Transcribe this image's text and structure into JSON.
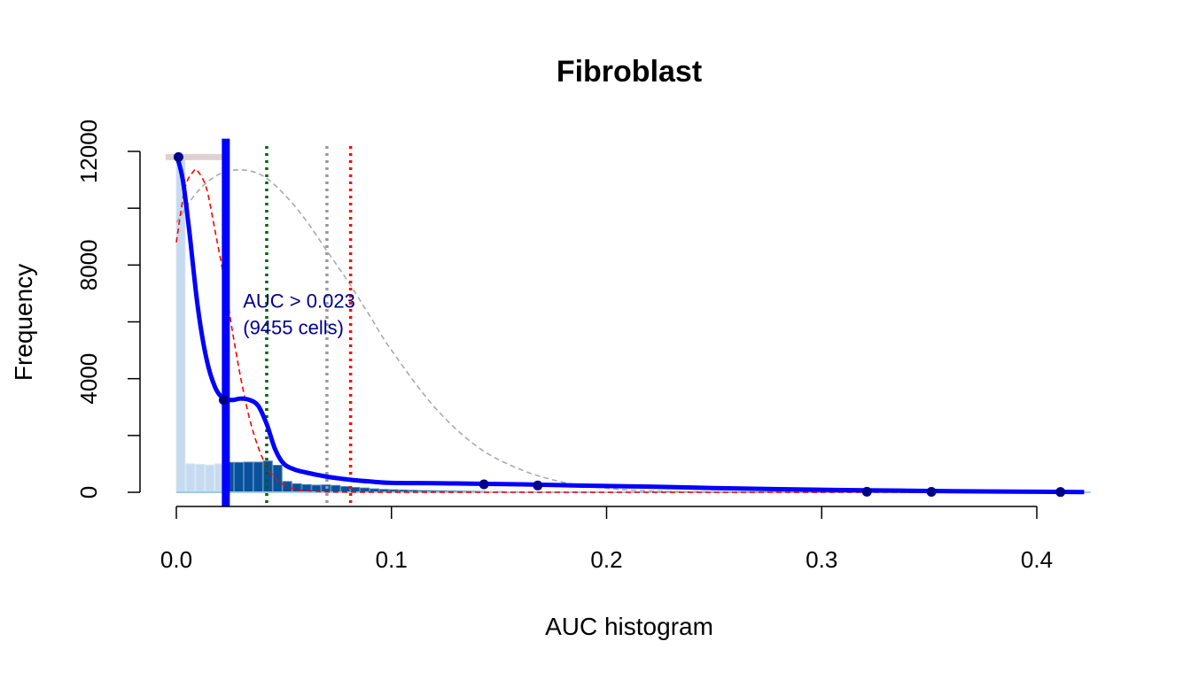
{
  "chart_data": {
    "type": "histogram",
    "title": "Fibroblast",
    "xlabel": "AUC histogram",
    "ylabel": "Frequency",
    "xlim": [
      0.0,
      0.42
    ],
    "ylim": [
      0,
      12000
    ],
    "x_ticks": [
      0.0,
      0.1,
      0.2,
      0.3,
      0.4
    ],
    "x_tick_labels": [
      "0.0",
      "0.1",
      "0.2",
      "0.3",
      "0.4"
    ],
    "y_ticks": [
      0,
      2000,
      4000,
      6000,
      8000,
      10000,
      12000
    ],
    "y_tick_labels": [
      "0",
      "4000",
      "8000",
      "12000"
    ],
    "grid": false,
    "histogram": {
      "bin_width": 0.0045,
      "light_color": "#c6dbef",
      "dark_color": "#08519c",
      "bins_below_threshold": [
        {
          "x": 0.0,
          "value": 11800
        },
        {
          "x": 0.0045,
          "value": 1000
        },
        {
          "x": 0.009,
          "value": 980
        },
        {
          "x": 0.0135,
          "value": 960
        },
        {
          "x": 0.018,
          "value": 1000
        }
      ],
      "bins_above_threshold": [
        {
          "x": 0.0225,
          "value": 1050
        },
        {
          "x": 0.027,
          "value": 1050
        },
        {
          "x": 0.0315,
          "value": 1060
        },
        {
          "x": 0.036,
          "value": 1060
        },
        {
          "x": 0.0405,
          "value": 1100
        },
        {
          "x": 0.045,
          "value": 950
        },
        {
          "x": 0.0495,
          "value": 380
        },
        {
          "x": 0.054,
          "value": 300
        },
        {
          "x": 0.0585,
          "value": 270
        },
        {
          "x": 0.063,
          "value": 250
        },
        {
          "x": 0.0675,
          "value": 260
        },
        {
          "x": 0.072,
          "value": 240
        },
        {
          "x": 0.0765,
          "value": 200
        },
        {
          "x": 0.081,
          "value": 170
        },
        {
          "x": 0.0855,
          "value": 150
        },
        {
          "x": 0.09,
          "value": 120
        },
        {
          "x": 0.0945,
          "value": 100
        },
        {
          "x": 0.099,
          "value": 90
        },
        {
          "x": 0.1035,
          "value": 80
        },
        {
          "x": 0.108,
          "value": 70
        },
        {
          "x": 0.1125,
          "value": 60
        },
        {
          "x": 0.117,
          "value": 55
        },
        {
          "x": 0.1215,
          "value": 50
        },
        {
          "x": 0.126,
          "value": 45
        },
        {
          "x": 0.1305,
          "value": 40
        },
        {
          "x": 0.135,
          "value": 35
        },
        {
          "x": 0.1395,
          "value": 30
        },
        {
          "x": 0.1485,
          "value": 25
        },
        {
          "x": 0.1575,
          "value": 20
        },
        {
          "x": 0.1665,
          "value": 15
        },
        {
          "x": 0.18,
          "value": 12
        },
        {
          "x": 0.2,
          "value": 10
        },
        {
          "x": 0.22,
          "value": 8
        },
        {
          "x": 0.25,
          "value": 6
        },
        {
          "x": 0.3,
          "value": 5
        },
        {
          "x": 0.35,
          "value": 4
        },
        {
          "x": 0.4,
          "value": 3
        }
      ]
    },
    "density_curve": {
      "color": "#0000ff",
      "x": [
        0.0,
        0.003,
        0.006,
        0.01,
        0.014,
        0.018,
        0.022,
        0.026,
        0.03,
        0.034,
        0.038,
        0.042,
        0.046,
        0.05,
        0.055,
        0.06,
        0.07,
        0.08,
        0.09,
        0.1,
        0.12,
        0.14,
        0.16,
        0.18,
        0.2,
        0.22,
        0.25,
        0.28,
        0.32,
        0.36,
        0.4,
        0.422
      ],
      "y": [
        11900,
        11000,
        9200,
        6500,
        4700,
        3700,
        3300,
        3250,
        3300,
        3250,
        3050,
        2400,
        1500,
        1000,
        800,
        700,
        550,
        450,
        380,
        330,
        320,
        300,
        280,
        250,
        220,
        200,
        150,
        110,
        70,
        40,
        20,
        10
      ]
    },
    "density_points": {
      "color": "#00008b",
      "x": [
        0.001,
        0.022,
        0.143,
        0.168,
        0.321,
        0.351,
        0.411
      ],
      "y": [
        11800,
        3250,
        280,
        240,
        20,
        15,
        10
      ]
    },
    "normal_fit_red": {
      "color": "#ff0000",
      "x": [
        0.0,
        0.004,
        0.008,
        0.01,
        0.014,
        0.018,
        0.022,
        0.026,
        0.03,
        0.034,
        0.038,
        0.042,
        0.046,
        0.05,
        0.055,
        0.06,
        0.07,
        0.08,
        0.1,
        0.15,
        0.2,
        0.3,
        0.42
      ],
      "y": [
        8800,
        10700,
        11300,
        11300,
        10700,
        9200,
        7600,
        5700,
        4000,
        2600,
        1600,
        900,
        500,
        260,
        120,
        60,
        20,
        8,
        3,
        0,
        0,
        0,
        0
      ]
    },
    "normal_fit_grey": {
      "color": "#aaaaaa",
      "x": [
        0.0,
        0.01,
        0.02,
        0.03,
        0.04,
        0.05,
        0.06,
        0.07,
        0.08,
        0.09,
        0.1,
        0.12,
        0.14,
        0.16,
        0.18,
        0.2,
        0.22,
        0.25,
        0.3,
        0.35,
        0.42
      ],
      "y": [
        9500,
        10600,
        11200,
        11350,
        11150,
        10500,
        9600,
        8500,
        7400,
        6200,
        5000,
        3000,
        1600,
        800,
        350,
        140,
        50,
        12,
        1,
        0,
        0
      ]
    },
    "flat_segment": {
      "color": "#dfd0d3",
      "x0": -0.005,
      "x1": 0.022,
      "y": 11800
    },
    "thresholds": [
      {
        "name": "selected",
        "x": 0.023,
        "color": "#0000ff",
        "style": "solid-thick",
        "y_top": 12450
      },
      {
        "name": "green",
        "x": 0.042,
        "color": "#006400",
        "style": "dotted"
      },
      {
        "name": "grey",
        "x": 0.07,
        "color": "#999999",
        "style": "dotted"
      },
      {
        "name": "red",
        "x": 0.081,
        "color": "#ff0000",
        "style": "dotted"
      }
    ],
    "annotation": {
      "line1": "AUC > 0.023",
      "line2": "(9455 cells)",
      "color": "#00008b",
      "anchor_x": 0.031,
      "anchor_y": 5000
    }
  }
}
